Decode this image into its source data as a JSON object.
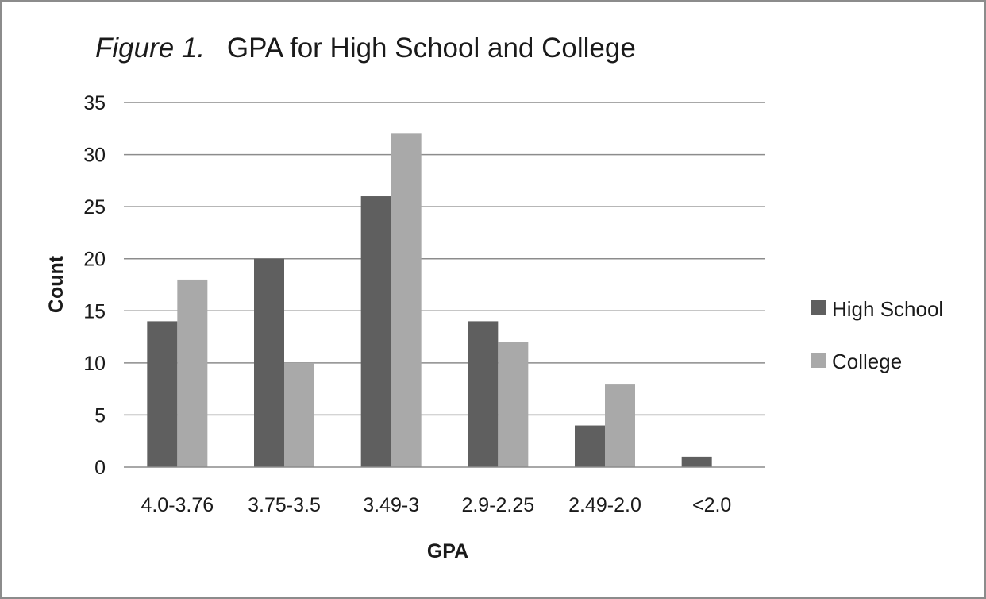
{
  "chart_data": {
    "type": "bar",
    "title_prefix": "Figure 1.",
    "title_main": "GPA for High School and College",
    "xlabel": "GPA",
    "ylabel": "Count",
    "categories": [
      "4.0-3.76",
      "3.75-3.5",
      "3.49-3",
      "2.9-2.25",
      "2.49-2.0",
      "<2.0"
    ],
    "series": [
      {
        "name": "High School",
        "values": [
          14,
          20,
          26,
          14,
          4,
          1
        ],
        "color": "#5f5f5f"
      },
      {
        "name": "College",
        "values": [
          18,
          10,
          32,
          12,
          8,
          0
        ],
        "color": "#a9a9a9"
      }
    ],
    "ylim": [
      0,
      35
    ],
    "yticks": [
      0,
      5,
      10,
      15,
      20,
      25,
      30,
      35
    ],
    "grid": true,
    "legend_position": "right",
    "gridline_color": "#8c8c8c",
    "frame_color": "#8c8c8c"
  }
}
